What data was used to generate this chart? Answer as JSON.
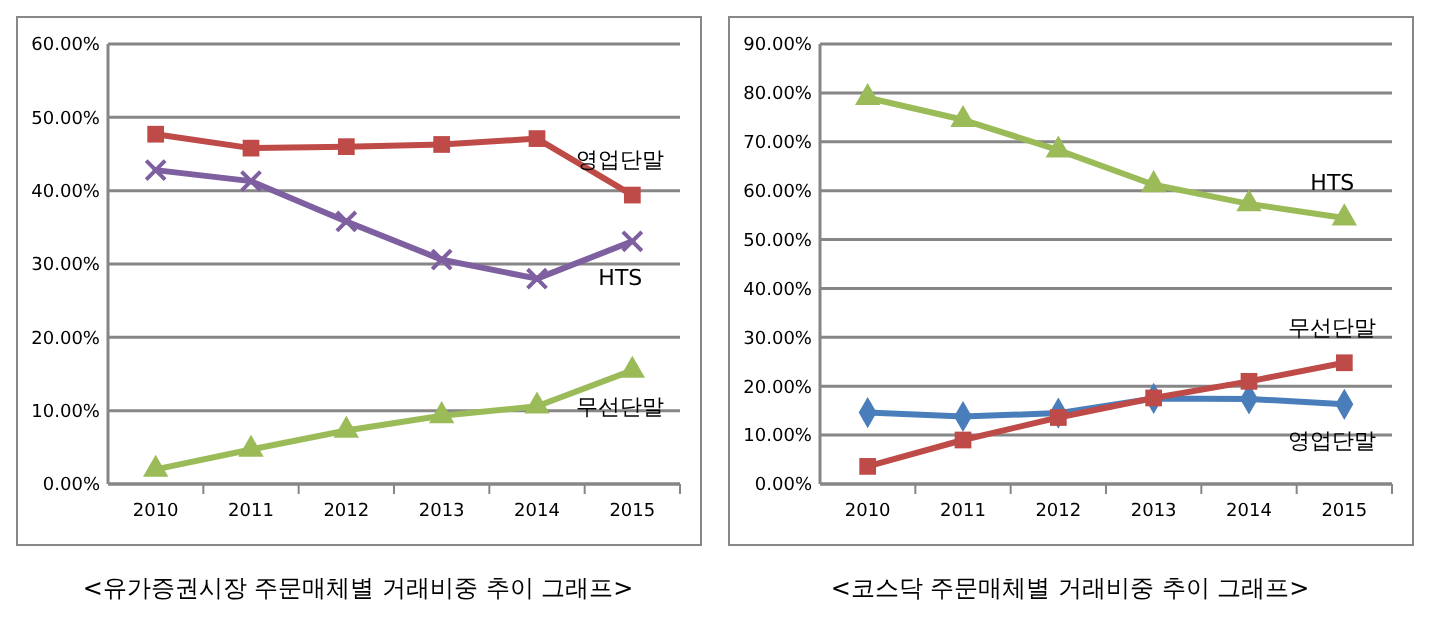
{
  "chart_data": [
    {
      "type": "line",
      "title": "<유가증권시장 주문매체별 거래비중 추이 그래프>",
      "categories": [
        "2010",
        "2011",
        "2012",
        "2013",
        "2014",
        "2015"
      ],
      "ylim": [
        0,
        60
      ],
      "yticks": [
        {
          "value": 0,
          "label": "0.00%"
        },
        {
          "value": 10,
          "label": "10.00%"
        },
        {
          "value": 20,
          "label": "20.00%"
        },
        {
          "value": 30,
          "label": "30.00%"
        },
        {
          "value": 40,
          "label": "40.00%"
        },
        {
          "value": 50,
          "label": "50.00%"
        },
        {
          "value": 60,
          "label": "60.00%"
        }
      ],
      "grid": "y",
      "series": [
        {
          "name": "영업단말",
          "color": "#be4b48",
          "marker": "square",
          "values": [
            47.7,
            45.8,
            46.0,
            46.3,
            47.1,
            39.4
          ]
        },
        {
          "name": "HTS",
          "color": "#7e5fa0",
          "marker": "cross",
          "values": [
            42.8,
            41.3,
            35.8,
            30.6,
            28.0,
            33.1
          ]
        },
        {
          "name": "무선단말",
          "color": "#9bbb59",
          "marker": "triangle",
          "values": [
            2.0,
            4.7,
            7.3,
            9.3,
            10.6,
            15.5
          ]
        }
      ]
    },
    {
      "type": "line",
      "title": "<코스닥 주문매체별 거래비중 추이 그래프>",
      "categories": [
        "2010",
        "2011",
        "2012",
        "2013",
        "2014",
        "2015"
      ],
      "ylim": [
        0,
        90
      ],
      "yticks": [
        {
          "value": 0,
          "label": "0.00%"
        },
        {
          "value": 10,
          "label": "10.00%"
        },
        {
          "value": 20,
          "label": "20.00%"
        },
        {
          "value": 30,
          "label": "30.00%"
        },
        {
          "value": 40,
          "label": "40.00%"
        },
        {
          "value": 50,
          "label": "50.00%"
        },
        {
          "value": 60,
          "label": "60.00%"
        },
        {
          "value": 70,
          "label": "70.00%"
        },
        {
          "value": 80,
          "label": "80.00%"
        },
        {
          "value": 90,
          "label": "90.00%"
        }
      ],
      "grid": "y",
      "series": [
        {
          "name": "영업단말",
          "color": "#4a7ebb",
          "marker": "diamond",
          "values": [
            14.6,
            13.8,
            14.5,
            17.5,
            17.4,
            16.3
          ]
        },
        {
          "name": "HTS",
          "color": "#9bbb59",
          "marker": "triangle",
          "values": [
            79.0,
            74.5,
            68.3,
            61.2,
            57.3,
            54.4
          ]
        },
        {
          "name": "무선단말",
          "color": "#be4b48",
          "marker": "square",
          "values": [
            3.6,
            9.0,
            13.6,
            17.6,
            21.0,
            24.8
          ]
        }
      ]
    }
  ]
}
